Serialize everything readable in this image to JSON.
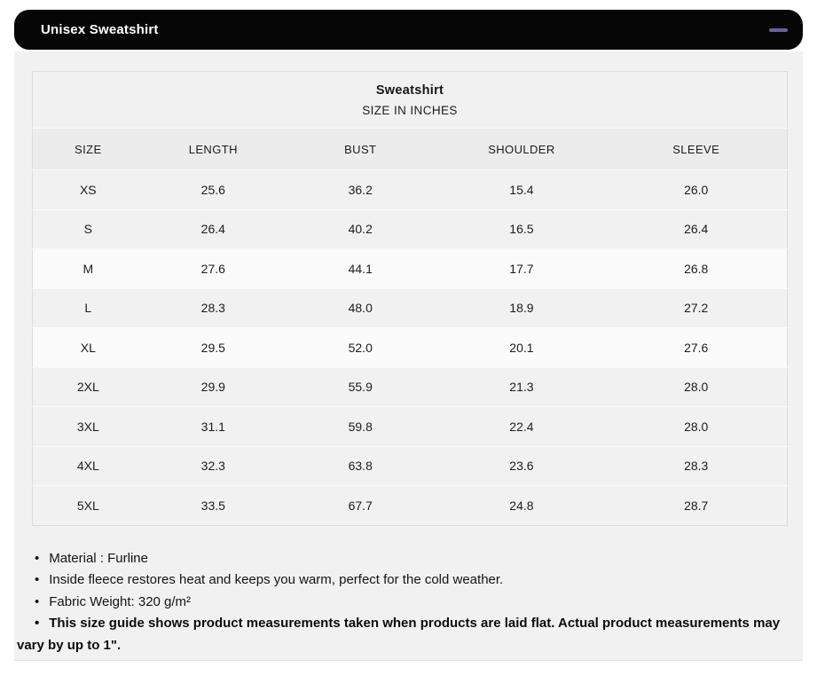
{
  "accordion": {
    "title": "Unisex Sweatshirt",
    "collapse_icon": "minus",
    "icon_color": "#6a5f9e",
    "bar_color": "#060606"
  },
  "size_chart": {
    "title": "Sweatshirt",
    "subtitle": "SIZE IN INCHES",
    "columns": [
      "SIZE",
      "LENGTH",
      "BUST",
      "SHOULDER",
      "SLEEVE"
    ],
    "column_widths": [
      "14.7%",
      "18.5%",
      "20.5%",
      "22.2%",
      "24.1%"
    ],
    "rows": [
      {
        "size": "XS",
        "length": "25.6",
        "bust": "36.2",
        "shoulder": "15.4",
        "sleeve": "26.0",
        "highlight": false
      },
      {
        "size": "S",
        "length": "26.4",
        "bust": "40.2",
        "shoulder": "16.5",
        "sleeve": "26.4",
        "highlight": false
      },
      {
        "size": "M",
        "length": "27.6",
        "bust": "44.1",
        "shoulder": "17.7",
        "sleeve": "26.8",
        "highlight": true
      },
      {
        "size": "L",
        "length": "28.3",
        "bust": "48.0",
        "shoulder": "18.9",
        "sleeve": "27.2",
        "highlight": false
      },
      {
        "size": "XL",
        "length": "29.5",
        "bust": "52.0",
        "shoulder": "20.1",
        "sleeve": "27.6",
        "highlight": true
      },
      {
        "size": "2XL",
        "length": "29.9",
        "bust": "55.9",
        "shoulder": "21.3",
        "sleeve": "28.0",
        "highlight": false
      },
      {
        "size": "3XL",
        "length": "31.1",
        "bust": "59.8",
        "shoulder": "22.4",
        "sleeve": "28.0",
        "highlight": false
      },
      {
        "size": "4XL",
        "length": "32.3",
        "bust": "63.8",
        "shoulder": "23.6",
        "sleeve": "28.3",
        "highlight": false
      },
      {
        "size": "5XL",
        "length": "33.5",
        "bust": "67.7",
        "shoulder": "24.8",
        "sleeve": "28.7",
        "highlight": false
      }
    ]
  },
  "notes": [
    {
      "text": "Material : Furline",
      "bold": false
    },
    {
      "text": "Inside fleece restores heat and keeps you warm, perfect for the cold weather.",
      "bold": false
    },
    {
      "text": "Fabric Weight: 320 g/m²",
      "bold": false
    },
    {
      "text": "This size guide shows product measurements taken when products are laid flat. Actual product measurements may vary by up to 1\".",
      "bold": true
    }
  ]
}
